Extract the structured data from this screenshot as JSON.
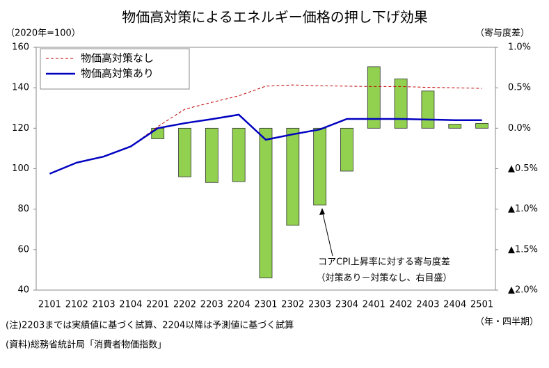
{
  "chart_data": {
    "type": "combo",
    "title": "物価高対策によるエネルギー価格の押し下げ効果",
    "y_label": "（2020年=100）",
    "y2_label": "（寄与度差）",
    "x_label": "（年・四半期）",
    "annotation": [
      "コアCPI上昇率に対する寄与度差",
      "（対策あり－対策なし、右目盛）"
    ],
    "notes": [
      "(注)2203までは実績値に基づく試算、2204以降は予測値に基づく試算",
      "(資料)総務省統計局「消費者物価指数」"
    ],
    "categories": [
      "2101",
      "2102",
      "2103",
      "2104",
      "2201",
      "2202",
      "2203",
      "2204",
      "2301",
      "2302",
      "2303",
      "2304",
      "2401",
      "2402",
      "2403",
      "2404",
      "2501"
    ],
    "series": [
      {
        "name": "物価高対策なし",
        "type": "line",
        "dash": true,
        "color": "#c00000",
        "values": [
          null,
          null,
          null,
          111,
          120.8,
          129.4,
          132.8,
          136,
          140.8,
          141.4,
          141,
          140.8,
          140.6,
          140.6,
          140.2,
          140,
          139.7
        ]
      },
      {
        "name": "物価高対策あり",
        "type": "line",
        "dash": false,
        "color": "#0000c0",
        "values": [
          97.5,
          103,
          106,
          111,
          120,
          122.5,
          124.5,
          126.7,
          114.3,
          117,
          119.4,
          124.6,
          124.6,
          124.6,
          124.3,
          124,
          124
        ]
      },
      {
        "type": "bar",
        "axis": "y2",
        "color": "#92d050",
        "values": [
          null,
          null,
          null,
          null,
          -0.13,
          -0.6,
          -0.67,
          -0.66,
          -1.85,
          -1.2,
          -0.95,
          -0.53,
          0.76,
          0.61,
          0.46,
          0.05,
          0.06
        ]
      }
    ],
    "ylim": [
      40,
      160
    ],
    "yticks": [
      40,
      60,
      80,
      100,
      120,
      140,
      160
    ],
    "y2lim": [
      -2,
      1
    ],
    "y2ticks": [
      {
        "value": -2,
        "label": "▲2.0%"
      },
      {
        "value": -1.5,
        "label": "▲1.5%"
      },
      {
        "value": -1,
        "label": "▲1.0%"
      },
      {
        "value": -0.5,
        "label": "▲0.5%"
      },
      {
        "value": 0,
        "label": "0.0%"
      },
      {
        "value": 0.5,
        "label": "0.5%"
      },
      {
        "value": 1,
        "label": "1.0%"
      }
    ],
    "grid": false,
    "legend": "top-left"
  }
}
